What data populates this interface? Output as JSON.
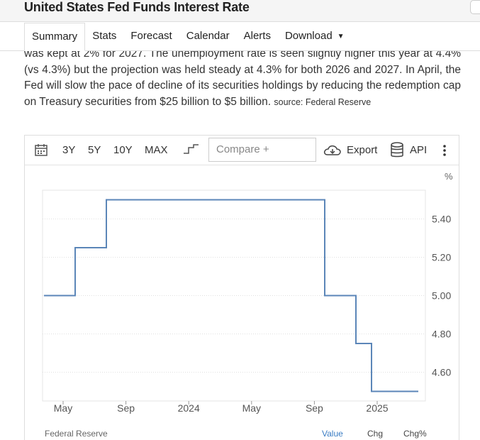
{
  "header": {
    "title": "United States Fed Funds Interest Rate"
  },
  "nav": {
    "tabs": [
      "Summary",
      "Stats",
      "Forecast",
      "Calendar",
      "Alerts",
      "Download"
    ],
    "active": "Summary"
  },
  "summary": {
    "line1": "was kept at 2% for 2027. The unemployment rate is seen slightly higher this year at",
    "text": "4.4% (vs 4.3%) but the projection was held steady at 4.3% for both 2026 and 2027. In April, the Fed will slow the pace of decline of its securities holdings by reducing the redemption cap on Treasury securities from $25 billion to $5 billion.",
    "source_label": "source: Federal Reserve"
  },
  "toolbar": {
    "ranges": [
      "3Y",
      "5Y",
      "10Y",
      "MAX"
    ],
    "compare_placeholder": "Compare +",
    "export_label": "Export",
    "api_label": "API",
    "icons": [
      "calendar-icon",
      "step-chart-icon",
      "cloud-download-icon",
      "database-icon",
      "more-vertical-icon"
    ]
  },
  "chart_data": {
    "type": "line",
    "step": true,
    "unit": "%",
    "color": "#5b86b8",
    "x_ticks": [
      "May",
      "Sep",
      "2024",
      "May",
      "Sep",
      "2025"
    ],
    "y_ticks": [
      "5.40",
      "5.20",
      "5.00",
      "4.80",
      "4.60"
    ],
    "ylim": [
      4.45,
      5.55
    ],
    "grid": true,
    "series": [
      {
        "values": [
          {
            "x": "2023-03",
            "y": 5.0
          },
          {
            "x": "2023-05",
            "y": 5.25
          },
          {
            "x": "2023-07",
            "y": 5.5
          },
          {
            "x": "2024-09",
            "y": 5.0
          },
          {
            "x": "2024-11",
            "y": 4.75
          },
          {
            "x": "2024-12",
            "y": 4.5
          },
          {
            "x": "2025-03",
            "y": 4.5
          }
        ]
      }
    ]
  },
  "footer": {
    "source": "Federal Reserve",
    "columns": [
      "Value",
      "Chg",
      "Chg%"
    ]
  }
}
